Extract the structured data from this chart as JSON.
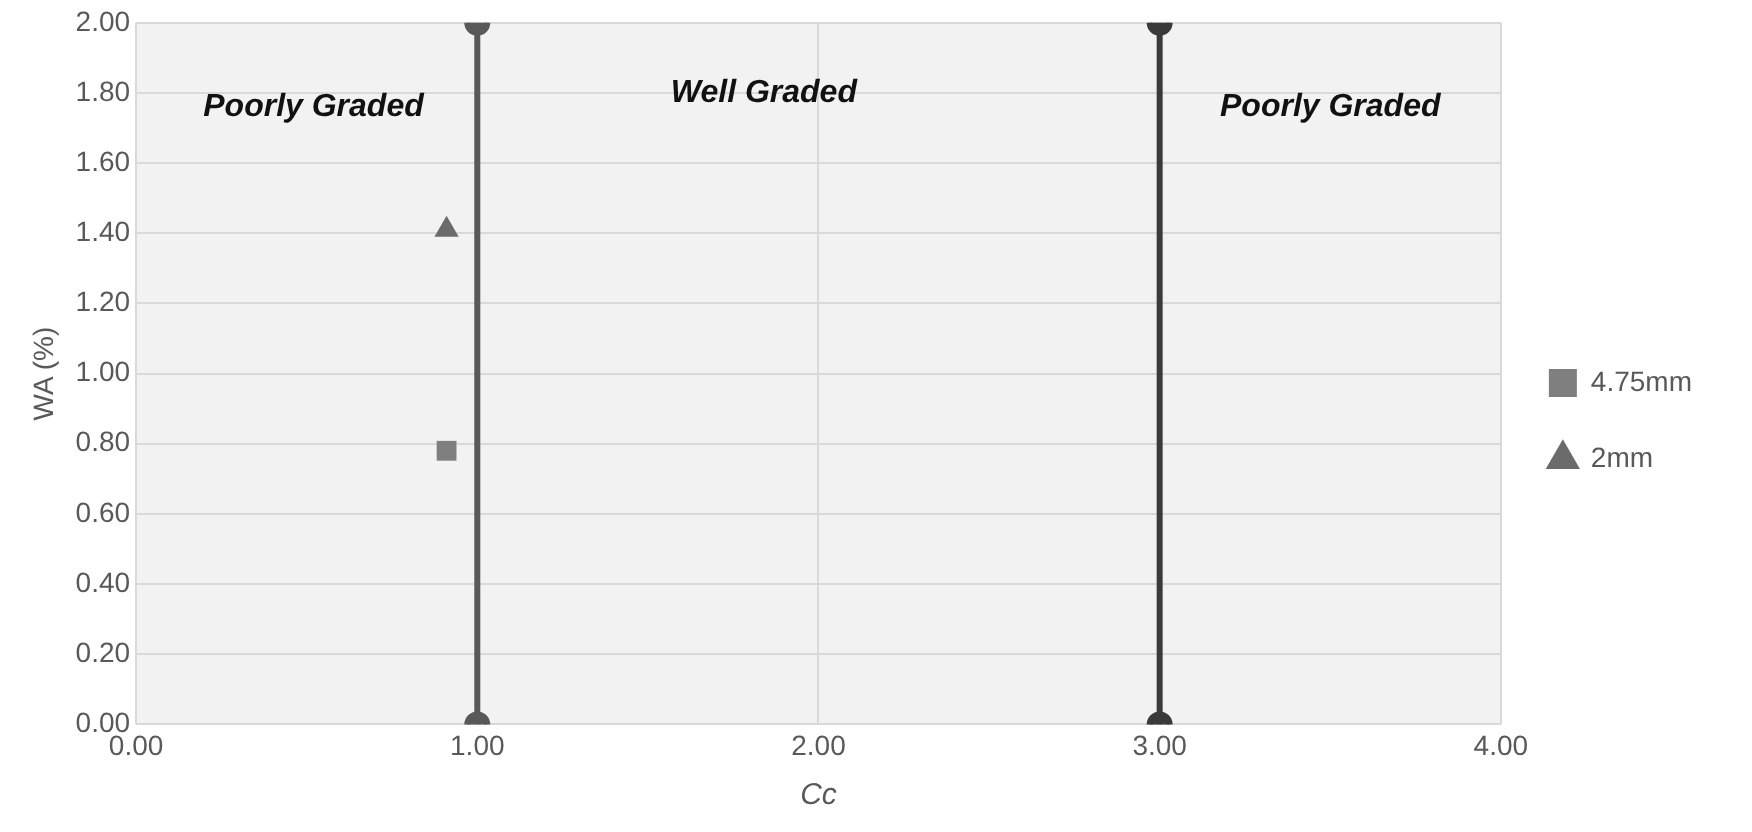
{
  "chart_data": {
    "type": "scatter",
    "xlabel": "Cc",
    "ylabel": "WA (%)",
    "xlim": [
      0,
      4
    ],
    "xticks": [
      {
        "value": 0,
        "label": "0.00"
      },
      {
        "value": 1,
        "label": "1.00"
      },
      {
        "value": 2,
        "label": "2.00"
      },
      {
        "value": 3,
        "label": "3.00"
      },
      {
        "value": 4,
        "label": "4.00"
      }
    ],
    "ylim": [
      0,
      2
    ],
    "yticks": [
      {
        "value": 0,
        "label": "0.00"
      },
      {
        "value": 0.2,
        "label": "0.20"
      },
      {
        "value": 0.4,
        "label": "0.40"
      },
      {
        "value": 0.6,
        "label": "0.60"
      },
      {
        "value": 0.8,
        "label": "0.80"
      },
      {
        "value": 1,
        "label": "1.00"
      },
      {
        "value": 1.2,
        "label": "1.20"
      },
      {
        "value": 1.4,
        "label": "1.40"
      },
      {
        "value": 1.6,
        "label": "1.60"
      },
      {
        "value": 1.8,
        "label": "1.80"
      },
      {
        "value": 2,
        "label": "2.00"
      }
    ],
    "grid": true,
    "legend": "right",
    "series": [
      {
        "name": "4.75mm",
        "type": "scatter",
        "marker": "square",
        "color": "#7f7f7f",
        "x": [
          0.91
        ],
        "values": [
          0.78
        ]
      },
      {
        "name": "2mm",
        "type": "scatter",
        "marker": "triangle",
        "color": "#6b6b6b",
        "x": [
          0.91
        ],
        "values": [
          1.41
        ]
      },
      {
        "type": "line",
        "marker": "circle",
        "color": "#595959",
        "x": [
          1,
          1
        ],
        "values": [
          0,
          2
        ]
      },
      {
        "type": "line",
        "marker": "circle",
        "color": "#3a3a3a",
        "x": [
          3,
          3
        ],
        "values": [
          0,
          2
        ]
      }
    ],
    "annotations": [
      "Poorly Graded",
      "Well Graded",
      "Poorly Graded"
    ]
  }
}
